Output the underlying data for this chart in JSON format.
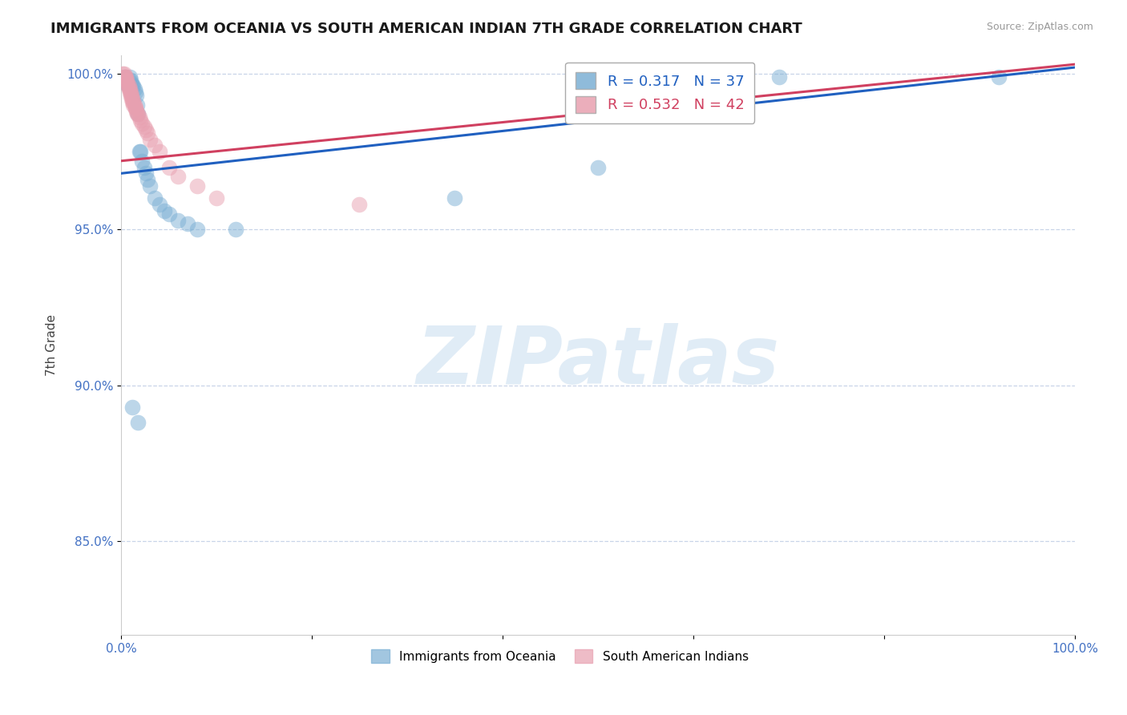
{
  "title": "IMMIGRANTS FROM OCEANIA VS SOUTH AMERICAN INDIAN 7TH GRADE CORRELATION CHART",
  "source_text": "Source: ZipAtlas.com",
  "ylabel": "7th Grade",
  "blue_label": "Immigrants from Oceania",
  "pink_label": "South American Indians",
  "blue_R": 0.317,
  "blue_N": 37,
  "pink_R": 0.532,
  "pink_N": 42,
  "xlim": [
    0.0,
    1.0
  ],
  "ylim": [
    0.82,
    1.006
  ],
  "yticks": [
    0.85,
    0.9,
    0.95,
    1.0
  ],
  "ytick_labels": [
    "85.0%",
    "90.0%",
    "95.0%",
    "100.0%"
  ],
  "xticks": [
    0.0,
    0.2,
    0.4,
    0.6,
    0.8,
    1.0
  ],
  "xtick_labels": [
    "0.0%",
    "",
    "",
    "",
    "",
    "100.0%"
  ],
  "blue_color": "#7bafd4",
  "pink_color": "#e8a0b0",
  "blue_line_color": "#2060c0",
  "pink_line_color": "#d04060",
  "watermark_text": "ZIPatlas",
  "title_fontsize": 13,
  "axis_label_fontsize": 11,
  "tick_fontsize": 11,
  "blue_scatter_x": [
    0.003,
    0.004,
    0.005,
    0.006,
    0.007,
    0.008,
    0.009,
    0.01,
    0.011,
    0.012,
    0.013,
    0.014,
    0.015,
    0.016,
    0.017,
    0.018,
    0.019,
    0.02,
    0.022,
    0.024,
    0.026,
    0.028,
    0.03,
    0.035,
    0.04,
    0.045,
    0.05,
    0.06,
    0.07,
    0.08,
    0.12,
    0.35,
    0.5,
    0.69,
    0.92,
    0.012,
    0.018
  ],
  "blue_scatter_y": [
    0.999,
    0.998,
    0.997,
    0.997,
    0.997,
    0.998,
    0.999,
    0.998,
    0.997,
    0.996,
    0.996,
    0.995,
    0.994,
    0.993,
    0.99,
    0.987,
    0.975,
    0.975,
    0.972,
    0.97,
    0.968,
    0.966,
    0.964,
    0.96,
    0.958,
    0.956,
    0.955,
    0.953,
    0.952,
    0.95,
    0.95,
    0.96,
    0.97,
    0.999,
    0.999,
    0.893,
    0.888
  ],
  "pink_scatter_x": [
    0.002,
    0.003,
    0.004,
    0.004,
    0.005,
    0.005,
    0.006,
    0.006,
    0.007,
    0.007,
    0.008,
    0.008,
    0.009,
    0.009,
    0.01,
    0.01,
    0.011,
    0.011,
    0.012,
    0.012,
    0.013,
    0.013,
    0.014,
    0.015,
    0.015,
    0.016,
    0.017,
    0.018,
    0.019,
    0.02,
    0.022,
    0.024,
    0.026,
    0.028,
    0.03,
    0.035,
    0.04,
    0.05,
    0.06,
    0.08,
    0.1,
    0.25
  ],
  "pink_scatter_y": [
    1.0,
    1.0,
    0.999,
    0.999,
    0.999,
    0.998,
    0.998,
    0.997,
    0.997,
    0.996,
    0.996,
    0.995,
    0.995,
    0.994,
    0.994,
    0.993,
    0.993,
    0.992,
    0.992,
    0.991,
    0.991,
    0.99,
    0.99,
    0.989,
    0.989,
    0.988,
    0.987,
    0.987,
    0.986,
    0.985,
    0.984,
    0.983,
    0.982,
    0.981,
    0.979,
    0.977,
    0.975,
    0.97,
    0.967,
    0.964,
    0.96,
    0.958
  ],
  "blue_trendline_x": [
    0.0,
    1.0
  ],
  "blue_trendline_y": [
    0.968,
    1.002
  ],
  "pink_trendline_x": [
    0.0,
    1.0
  ],
  "pink_trendline_y": [
    0.972,
    1.003
  ]
}
